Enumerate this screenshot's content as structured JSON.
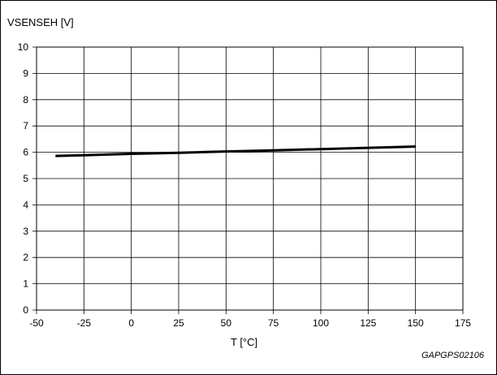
{
  "chart_data": {
    "type": "line",
    "ylabel": "VSENSEH [V]",
    "xlabel": "T [°C]",
    "figure_code": "GAPGPS02106",
    "xlim": [
      -50,
      175
    ],
    "ylim": [
      0,
      10
    ],
    "x_ticks": [
      -50,
      -25,
      0,
      25,
      50,
      75,
      100,
      125,
      150,
      175
    ],
    "y_ticks": [
      0,
      1,
      2,
      3,
      4,
      5,
      6,
      7,
      8,
      9,
      10
    ],
    "grid": true,
    "series": [
      {
        "x": [
          -40,
          -25,
          0,
          25,
          50,
          75,
          100,
          125,
          150
        ],
        "y": [
          5.86,
          5.89,
          5.94,
          5.98,
          6.03,
          6.07,
          6.12,
          6.17,
          6.22
        ],
        "color": "#000000"
      }
    ]
  }
}
